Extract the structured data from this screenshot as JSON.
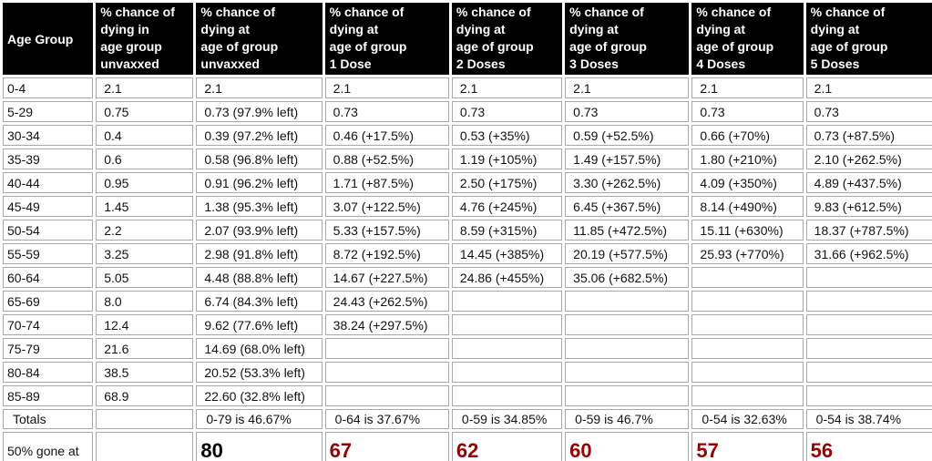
{
  "headers": [
    "Age Group",
    "% chance of\ndying in\nage group\nunvaxxed",
    "% chance of\ndying at\nage of group\nunvaxxed",
    "% chance of\ndying at\nage of group\n1 Dose",
    "% chance of\ndying at\nage of group\n2 Doses",
    "% chance of\ndying at\nage of group\n3 Doses",
    "% chance of\ndying at\nage of group\n4 Doses",
    "% chance of\ndying at\nage of group\n5 Doses"
  ],
  "rows": [
    [
      "0-4",
      "2.1",
      "2.1",
      "2.1",
      "2.1",
      "2.1",
      "2.1",
      "2.1"
    ],
    [
      "5-29",
      "0.75",
      "0.73 (97.9% left)",
      "0.73",
      "0.73",
      "0.73",
      "0.73",
      "0.73"
    ],
    [
      "30-34",
      "0.4",
      "0.39 (97.2% left)",
      "0.46 (+17.5%)",
      "0.53 (+35%)",
      "0.59 (+52.5%)",
      "0.66 (+70%)",
      "0.73 (+87.5%)"
    ],
    [
      "35-39",
      "0.6",
      "0.58 (96.8% left)",
      "0.88 (+52.5%)",
      "1.19 (+105%)",
      "1.49 (+157.5%)",
      "1.80 (+210%)",
      "2.10 (+262.5%)"
    ],
    [
      "40-44",
      "0.95",
      "0.91 (96.2% left)",
      "1.71 (+87.5%)",
      "2.50 (+175%)",
      "3.30 (+262.5%)",
      "4.09 (+350%)",
      "4.89 (+437.5%)"
    ],
    [
      "45-49",
      "1.45",
      "1.38 (95.3% left)",
      "3.07 (+122.5%)",
      "4.76 (+245%)",
      "6.45 (+367.5%)",
      "8.14 (+490%)",
      "9.83 (+612.5%)"
    ],
    [
      "50-54",
      "2.2",
      "2.07 (93.9% left)",
      "5.33 (+157.5%)",
      "8.59 (+315%)",
      "11.85 (+472.5%)",
      "15.11 (+630%)",
      "18.37 (+787.5%)"
    ],
    [
      "55-59",
      "3.25",
      "2.98 (91.8% left)",
      "8.72 (+192.5%)",
      "14.45 (+385%)",
      "20.19 (+577.5%)",
      "25.93 (+770%)",
      "31.66 (+962.5%)"
    ],
    [
      "60-64",
      "5.05",
      "4.48 (88.8% left)",
      "14.67 (+227.5%)",
      "24.86 (+455%)",
      "35.06 (+682.5%)",
      "",
      ""
    ],
    [
      "65-69",
      "8.0",
      "6.74 (84.3% left)",
      "24.43 (+262.5%)",
      "",
      "",
      "",
      ""
    ],
    [
      "70-74",
      "12.4",
      "9.62 (77.6% left)",
      "38.24 (+297.5%)",
      "",
      "",
      "",
      ""
    ],
    [
      "75-79",
      "21.6",
      "14.69 (68.0% left)",
      "",
      "",
      "",
      "",
      ""
    ],
    [
      "80-84",
      "38.5",
      "20.52 (53.3% left)",
      "",
      "",
      "",
      "",
      ""
    ],
    [
      "85-89",
      "68.9",
      "22.60 (32.8% left)",
      "",
      "",
      "",
      "",
      ""
    ]
  ],
  "totals": [
    "Totals",
    "",
    "0-79 is 46.67%",
    "0-64 is 37.67%",
    "0-59 is 34.85%",
    "0-59 is 46.7%",
    "0-54 is 32.63%",
    "0-54 is 38.74%"
  ],
  "gone": [
    "50% gone at",
    "",
    "80",
    "67",
    "62",
    "60",
    "57",
    "56"
  ],
  "colors": {
    "header_bg": "#000000",
    "header_text": "#ffffff",
    "emphasis_red": "#990000"
  }
}
